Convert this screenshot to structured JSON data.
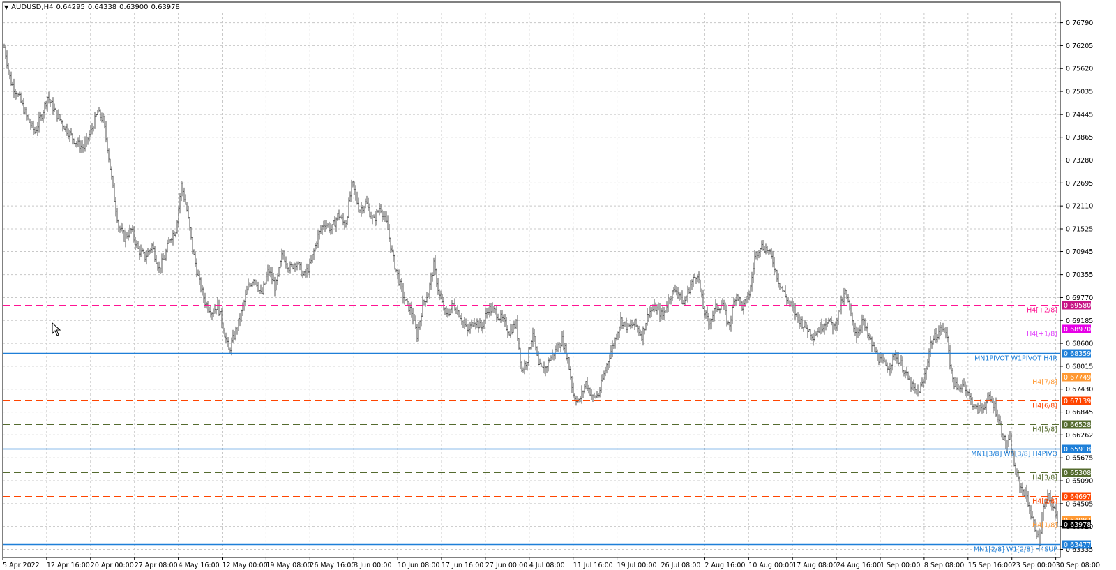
{
  "header": {
    "symbol": "AUDUSD,H4",
    "open": "0.64295",
    "high": "0.64338",
    "low": "0.63900",
    "close": "0.63978"
  },
  "chart_data": {
    "type": "candlestick",
    "symbol": "AUDUSD",
    "timeframe": "H4",
    "x_tick_labels": [
      "5 Apr 2022",
      "12 Apr 16:00",
      "20 Apr 00:00",
      "27 Apr 08:00",
      "4 May 16:00",
      "12 May 00:00",
      "19 May 08:00",
      "26 May 16:00",
      "3 Jun 00:00",
      "10 Jun 08:00",
      "17 Jun 16:00",
      "27 Jun 00:00",
      "4 Jul 08:00",
      "11 Jul 16:00",
      "19 Jul 00:00",
      "26 Jul 08:00",
      "2 Aug 16:00",
      "10 Aug 00:00",
      "17 Aug 08:00",
      "24 Aug 16:00",
      "1 Sep 00:00",
      "8 Sep 08:00",
      "15 Sep 16:00",
      "23 Sep 00:00",
      "30 Sep 08:00"
    ],
    "y_tick_labels": [
      "0.76790",
      "0.76205",
      "0.75620",
      "0.75035",
      "0.74445",
      "0.73865",
      "0.73280",
      "0.72695",
      "0.72110",
      "0.71525",
      "0.70945",
      "0.70355",
      "0.69770",
      "0.69185",
      "0.68600",
      "0.68015",
      "0.67430",
      "0.66845",
      "0.66262",
      "0.65675",
      "0.65090",
      "0.64505",
      "0.63920",
      "0.63335"
    ],
    "ylim": [
      0.6313,
      0.7705
    ],
    "grid": true,
    "price_path": [
      [
        0,
        0.7665
      ],
      [
        8,
        0.76
      ],
      [
        15,
        0.753
      ],
      [
        28,
        0.7485
      ],
      [
        40,
        0.743
      ],
      [
        50,
        0.74
      ],
      [
        60,
        0.7445
      ],
      [
        68,
        0.749
      ],
      [
        78,
        0.7455
      ],
      [
        90,
        0.742
      ],
      [
        100,
        0.7395
      ],
      [
        110,
        0.737
      ],
      [
        120,
        0.736
      ],
      [
        130,
        0.74
      ],
      [
        140,
        0.745
      ],
      [
        148,
        0.743
      ],
      [
        155,
        0.735
      ],
      [
        163,
        0.724
      ],
      [
        170,
        0.716
      ],
      [
        178,
        0.713
      ],
      [
        188,
        0.715
      ],
      [
        198,
        0.71
      ],
      [
        208,
        0.708
      ],
      [
        218,
        0.711
      ],
      [
        228,
        0.705
      ],
      [
        236,
        0.708
      ],
      [
        244,
        0.713
      ],
      [
        252,
        0.715
      ],
      [
        260,
        0.7265
      ],
      [
        268,
        0.72
      ],
      [
        276,
        0.71
      ],
      [
        285,
        0.702
      ],
      [
        295,
        0.696
      ],
      [
        305,
        0.694
      ],
      [
        312,
        0.696
      ],
      [
        320,
        0.69
      ],
      [
        328,
        0.684
      ],
      [
        336,
        0.688
      ],
      [
        345,
        0.693
      ],
      [
        355,
        0.7
      ],
      [
        365,
        0.703
      ],
      [
        375,
        0.698
      ],
      [
        385,
        0.705
      ],
      [
        395,
        0.7
      ],
      [
        405,
        0.709
      ],
      [
        415,
        0.705
      ],
      [
        425,
        0.707
      ],
      [
        435,
        0.703
      ],
      [
        445,
        0.706
      ],
      [
        455,
        0.713
      ],
      [
        465,
        0.717
      ],
      [
        475,
        0.715
      ],
      [
        485,
        0.719
      ],
      [
        495,
        0.716
      ],
      [
        505,
        0.727
      ],
      [
        515,
        0.72
      ],
      [
        525,
        0.722
      ],
      [
        535,
        0.717
      ],
      [
        545,
        0.721
      ],
      [
        555,
        0.716
      ],
      [
        563,
        0.708
      ],
      [
        572,
        0.702
      ],
      [
        580,
        0.697
      ],
      [
        590,
        0.694
      ],
      [
        598,
        0.688
      ],
      [
        606,
        0.696
      ],
      [
        614,
        0.699
      ],
      [
        622,
        0.706
      ],
      [
        630,
        0.698
      ],
      [
        640,
        0.693
      ],
      [
        650,
        0.696
      ],
      [
        660,
        0.693
      ],
      [
        670,
        0.689
      ],
      [
        680,
        0.692
      ],
      [
        690,
        0.69
      ],
      [
        700,
        0.695
      ],
      [
        710,
        0.694
      ],
      [
        720,
        0.692
      ],
      [
        730,
        0.689
      ],
      [
        740,
        0.691
      ],
      [
        748,
        0.679
      ],
      [
        756,
        0.682
      ],
      [
        764,
        0.689
      ],
      [
        772,
        0.68
      ],
      [
        780,
        0.679
      ],
      [
        788,
        0.682
      ],
      [
        796,
        0.684
      ],
      [
        806,
        0.687
      ],
      [
        814,
        0.682
      ],
      [
        822,
        0.673
      ],
      [
        830,
        0.671
      ],
      [
        840,
        0.676
      ],
      [
        850,
        0.672
      ],
      [
        858,
        0.673
      ],
      [
        866,
        0.678
      ],
      [
        874,
        0.683
      ],
      [
        882,
        0.687
      ],
      [
        890,
        0.692
      ],
      [
        900,
        0.69
      ],
      [
        910,
        0.691
      ],
      [
        920,
        0.688
      ],
      [
        930,
        0.694
      ],
      [
        940,
        0.695
      ],
      [
        950,
        0.693
      ],
      [
        960,
        0.698
      ],
      [
        970,
        0.7
      ],
      [
        980,
        0.696
      ],
      [
        990,
        0.701
      ],
      [
        1000,
        0.704
      ],
      [
        1008,
        0.695
      ],
      [
        1016,
        0.691
      ],
      [
        1026,
        0.695
      ],
      [
        1036,
        0.696
      ],
      [
        1045,
        0.69
      ],
      [
        1055,
        0.699
      ],
      [
        1065,
        0.695
      ],
      [
        1075,
        0.699
      ],
      [
        1082,
        0.708
      ],
      [
        1090,
        0.711
      ],
      [
        1100,
        0.71
      ],
      [
        1108,
        0.707
      ],
      [
        1116,
        0.702
      ],
      [
        1126,
        0.698
      ],
      [
        1136,
        0.695
      ],
      [
        1146,
        0.692
      ],
      [
        1156,
        0.69
      ],
      [
        1166,
        0.688
      ],
      [
        1176,
        0.69
      ],
      [
        1186,
        0.692
      ],
      [
        1196,
        0.69
      ],
      [
        1204,
        0.695
      ],
      [
        1212,
        0.699
      ],
      [
        1220,
        0.693
      ],
      [
        1228,
        0.688
      ],
      [
        1236,
        0.692
      ],
      [
        1244,
        0.688
      ],
      [
        1254,
        0.684
      ],
      [
        1264,
        0.681
      ],
      [
        1274,
        0.68
      ],
      [
        1284,
        0.683
      ],
      [
        1294,
        0.68
      ],
      [
        1304,
        0.676
      ],
      [
        1314,
        0.673
      ],
      [
        1324,
        0.676
      ],
      [
        1334,
        0.686
      ],
      [
        1342,
        0.688
      ],
      [
        1350,
        0.69
      ],
      [
        1358,
        0.688
      ],
      [
        1364,
        0.678
      ],
      [
        1372,
        0.674
      ],
      [
        1382,
        0.676
      ],
      [
        1390,
        0.672
      ],
      [
        1400,
        0.669
      ],
      [
        1410,
        0.67
      ],
      [
        1418,
        0.672
      ],
      [
        1426,
        0.67
      ],
      [
        1434,
        0.665
      ],
      [
        1442,
        0.66
      ],
      [
        1448,
        0.661
      ],
      [
        1456,
        0.653
      ],
      [
        1464,
        0.649
      ],
      [
        1472,
        0.647
      ],
      [
        1478,
        0.642
      ],
      [
        1484,
        0.639
      ],
      [
        1490,
        0.635
      ],
      [
        1496,
        0.644
      ],
      [
        1504,
        0.647
      ],
      [
        1510,
        0.644
      ],
      [
        1518,
        0.6398
      ]
    ],
    "levels": [
      {
        "price": 0.6958,
        "label": "H4[+2/8]",
        "color": "#ff1493",
        "style": "dashed",
        "price_bg": "#c71585",
        "price_text": "0.69580"
      },
      {
        "price": 0.6897,
        "label": "H4[+1/8]",
        "color": "#e040fb",
        "style": "dashed",
        "price_bg": "#e600e6",
        "price_text": "0.68970"
      },
      {
        "price": 0.68359,
        "label": "MN1PIVOT W1PIVOT H4R",
        "color": "#1e7fd8",
        "style": "solid",
        "price_bg": "#1e7fd8",
        "price_text": "0.68359"
      },
      {
        "price": 0.67749,
        "label": "H4[7/8]",
        "color": "#ff9933",
        "style": "dashed",
        "price_bg": "#ff9933",
        "price_text": "0.67749"
      },
      {
        "price": 0.67139,
        "label": "H4[6/8]",
        "color": "#ff4500",
        "style": "dashed",
        "price_bg": "#ff4500",
        "price_text": "0.67139"
      },
      {
        "price": 0.66528,
        "label": "H4[5/8]",
        "color": "#556b2f",
        "style": "dashed",
        "price_bg": "#556b2f",
        "price_text": "0.66528"
      },
      {
        "price": 0.65918,
        "label": "MN1[3/8] W1[3/8] H4PIVO",
        "color": "#1e7fd8",
        "style": "solid",
        "price_bg": "#1e7fd8",
        "price_text": "0.65918"
      },
      {
        "price": 0.65308,
        "label": "H4[3/8]",
        "color": "#556b2f",
        "style": "dashed",
        "price_bg": "#556b2f",
        "price_text": "0.65308"
      },
      {
        "price": 0.64697,
        "label": "H4[2/8]",
        "color": "#ff4500",
        "style": "dashed",
        "price_bg": "#ff4500",
        "price_text": "0.64697"
      },
      {
        "price": 0.64087,
        "label": "H4[1/8]",
        "color": "#ff9933",
        "style": "dashed",
        "price_bg": "#ff9933",
        "price_text": "0.64087"
      },
      {
        "price": 0.63477,
        "label": "MN1[2/8] W1[2/8] H4SUP",
        "color": "#1e7fd8",
        "style": "solid",
        "price_bg": "#1e7fd8",
        "price_text": "0.63477"
      }
    ],
    "current_price": {
      "price": 0.63978,
      "text": "0.63978",
      "bg": "#000000"
    }
  }
}
